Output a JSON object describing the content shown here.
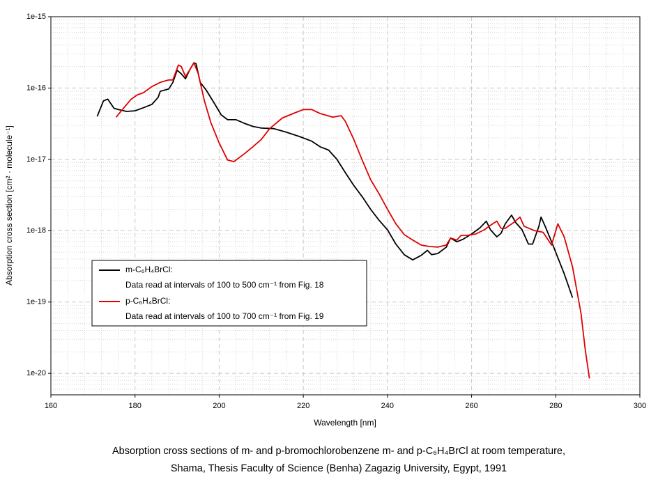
{
  "chart_data": {
    "type": "line",
    "log_y": true,
    "grid": true,
    "x_label": "Wavelength [nm]",
    "y_label": "Absorption cross section [cm² · molecule⁻¹]",
    "caption": [
      "Absorption cross sections of m- and p-bromochlorobenzene m- and p-C₆H₄BrCl at room temperature,",
      "Shama, Thesis Faculty of Science (Benha) Zagazig University, Egypt, 1991"
    ],
    "xlim": [
      160,
      300
    ],
    "xticks": [
      160,
      180,
      200,
      220,
      240,
      260,
      280,
      300
    ],
    "ylim": [
      5e-21,
      1e-15
    ],
    "yticks": [
      1e-20,
      1e-19,
      1e-18,
      1e-17,
      1e-16,
      1e-15
    ],
    "legend": "lower-left",
    "series": [
      {
        "name": "m-C₆H₄BrCl:",
        "note": "Data read at intervals of 100 to 500 cm⁻¹ from Fig. 18",
        "color": "#000000",
        "x": [
          171,
          172.5,
          173.5,
          175,
          176,
          178,
          180,
          182,
          184,
          185.5,
          186,
          188,
          189,
          190,
          191,
          192,
          193,
          194,
          194.5,
          195.5,
          197,
          199,
          200.5,
          202,
          204,
          206,
          208,
          210,
          213,
          216,
          219,
          222,
          224,
          226,
          228,
          230,
          232,
          234,
          236,
          238,
          240,
          242,
          244,
          246,
          248,
          249.5,
          250.5,
          252,
          254,
          255,
          256.5,
          258,
          260,
          262,
          263.5,
          264.5,
          266,
          267,
          268,
          269.5,
          270.5,
          272,
          273.5,
          274.5,
          276,
          276.5,
          277.5,
          279,
          280.5,
          282,
          284
        ],
        "values": [
          4e-17,
          6.6e-17,
          7e-17,
          5.2e-17,
          5e-17,
          4.7e-17,
          4.8e-17,
          5.3e-17,
          5.9e-17,
          7.4e-17,
          9e-17,
          9.7e-17,
          1.2e-16,
          1.78e-16,
          1.58e-16,
          1.35e-16,
          1.8e-16,
          2.26e-16,
          2.2e-16,
          1.2e-16,
          9.2e-17,
          5.9e-17,
          4.2e-17,
          3.6e-17,
          3.6e-17,
          3.2e-17,
          2.9e-17,
          2.75e-17,
          2.7e-17,
          2.4e-17,
          2.1e-17,
          1.8e-17,
          1.5e-17,
          1.35e-17,
          1e-17,
          6.5e-18,
          4.3e-18,
          3e-18,
          2e-18,
          1.4e-18,
          1.03e-18,
          6.5e-19,
          4.6e-19,
          3.9e-19,
          4.5e-19,
          5.3e-19,
          4.6e-19,
          4.8e-19,
          5.9e-19,
          7.9e-19,
          7e-19,
          7.6e-19,
          9e-19,
          1.1e-18,
          1.36e-18,
          1.03e-18,
          8.2e-19,
          9.2e-19,
          1.25e-18,
          1.65e-18,
          1.3e-18,
          1.03e-18,
          6.5e-19,
          6.5e-19,
          1.15e-18,
          1.55e-18,
          1.15e-18,
          7e-19,
          4.2e-19,
          2.5e-19,
          1.15e-19
        ]
      },
      {
        "name": "p-C₆H₄BrCl:",
        "note": "Data read at intervals of 100 to 700 cm⁻¹ from Fig. 19",
        "color": "#e00000",
        "x": [
          175.5,
          177,
          179,
          180.5,
          182,
          184,
          186,
          188,
          189,
          190.3,
          191,
          192,
          193,
          194,
          195,
          196.5,
          198,
          200,
          202,
          203.5,
          206,
          208,
          210,
          212,
          215,
          218,
          220,
          222,
          224,
          227,
          229,
          230,
          232,
          234,
          236,
          238,
          240,
          242,
          244,
          246,
          248,
          250,
          252,
          254,
          255,
          256.5,
          257.5,
          259,
          261,
          263,
          265,
          266,
          267,
          268,
          270,
          271.5,
          272.5,
          275,
          277,
          279,
          280.5,
          282,
          284,
          286,
          287,
          288
        ],
        "values": [
          3.9e-17,
          5e-17,
          6.9e-17,
          8e-17,
          8.6e-17,
          1.05e-16,
          1.2e-16,
          1.3e-16,
          1.3e-16,
          2.1e-16,
          2e-16,
          1.45e-16,
          1.8e-16,
          2.26e-16,
          1.6e-16,
          6.6e-17,
          3.3e-17,
          1.7e-17,
          9.8e-18,
          9.3e-18,
          1.2e-17,
          1.5e-17,
          1.9e-17,
          2.7e-17,
          3.8e-17,
          4.5e-17,
          5e-17,
          5e-17,
          4.4e-17,
          3.9e-17,
          4.1e-17,
          3.4e-17,
          1.9e-17,
          9.8e-18,
          5.2e-18,
          3.3e-18,
          2e-18,
          1.25e-18,
          8.8e-19,
          7.4e-19,
          6.3e-19,
          6e-19,
          5.9e-19,
          6.3e-19,
          7.9e-19,
          7.4e-19,
          8.6e-19,
          8.6e-19,
          9e-19,
          1.03e-18,
          1.25e-18,
          1.36e-18,
          1.08e-18,
          1.08e-18,
          1.3e-18,
          1.55e-18,
          1.15e-18,
          1e-18,
          9.5e-19,
          6.3e-19,
          1.25e-18,
          8.2e-19,
          3.1e-19,
          7e-20,
          2.2e-20,
          8.5e-21
        ]
      }
    ]
  }
}
